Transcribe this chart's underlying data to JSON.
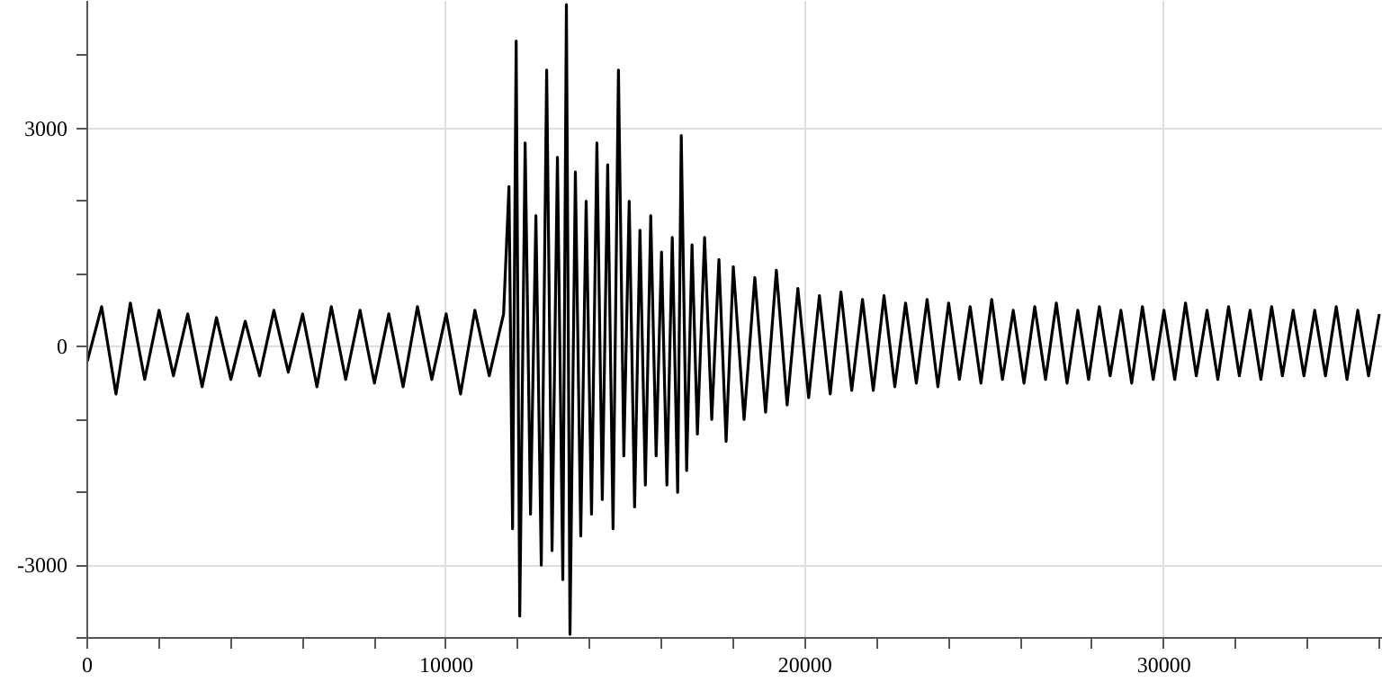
{
  "chart_data": {
    "type": "line",
    "x": [
      0,
      400,
      800,
      1200,
      1600,
      2000,
      2400,
      2800,
      3200,
      3600,
      4000,
      4400,
      4800,
      5200,
      5600,
      6000,
      6400,
      6800,
      7200,
      7600,
      8000,
      8400,
      8800,
      9200,
      9600,
      10000,
      10400,
      10800,
      11200,
      11600,
      11750,
      11850,
      11950,
      12050,
      12200,
      12350,
      12500,
      12650,
      12800,
      12950,
      13100,
      13250,
      13350,
      13450,
      13600,
      13750,
      13900,
      14050,
      14200,
      14350,
      14500,
      14650,
      14800,
      14950,
      15100,
      15250,
      15400,
      15550,
      15700,
      15850,
      16000,
      16150,
      16300,
      16450,
      16550,
      16700,
      16850,
      17000,
      17200,
      17400,
      17600,
      17800,
      18000,
      18300,
      18600,
      18900,
      19200,
      19500,
      19800,
      20100,
      20400,
      20700,
      21000,
      21300,
      21600,
      21900,
      22200,
      22500,
      22800,
      23100,
      23400,
      23700,
      24000,
      24300,
      24600,
      24900,
      25200,
      25500,
      25800,
      26100,
      26400,
      26700,
      27000,
      27300,
      27600,
      27900,
      28200,
      28500,
      28800,
      29100,
      29400,
      29700,
      30000,
      30300,
      30600,
      30900,
      31200,
      31500,
      31800,
      32100,
      32400,
      32700,
      33000,
      33300,
      33600,
      33900,
      34200,
      34500,
      34800,
      35100,
      35400,
      35700,
      36000
    ],
    "values": [
      -200,
      550,
      -650,
      600,
      -450,
      500,
      -400,
      450,
      -550,
      400,
      -450,
      350,
      -400,
      500,
      -350,
      450,
      -550,
      550,
      -450,
      500,
      -500,
      450,
      -550,
      550,
      -450,
      450,
      -650,
      500,
      -400,
      450,
      2200,
      -2500,
      4200,
      -3700,
      2800,
      -2300,
      1800,
      -3000,
      3800,
      -2800,
      2600,
      -3200,
      4700,
      -3950,
      2400,
      -2600,
      2000,
      -2300,
      2800,
      -2100,
      2500,
      -2500,
      3800,
      -1500,
      2000,
      -2200,
      1600,
      -1900,
      1800,
      -1500,
      1300,
      -1900,
      1500,
      -2000,
      2900,
      -1700,
      1400,
      -1200,
      1500,
      -1000,
      1200,
      -1300,
      1100,
      -1000,
      950,
      -900,
      1050,
      -800,
      800,
      -700,
      700,
      -650,
      750,
      -600,
      650,
      -600,
      700,
      -550,
      600,
      -500,
      650,
      -550,
      600,
      -450,
      550,
      -500,
      650,
      -450,
      500,
      -500,
      550,
      -450,
      600,
      -500,
      500,
      -450,
      550,
      -400,
      500,
      -500,
      550,
      -450,
      500,
      -450,
      600,
      -400,
      500,
      -450,
      550,
      -400,
      500,
      -450,
      550,
      -400,
      500,
      -400,
      500,
      -400,
      550,
      -450,
      500,
      -400,
      450
    ],
    "color": "#000000",
    "xlim": [
      0,
      36100
    ],
    "ylim": [
      -4000,
      4750
    ],
    "xticks": [
      0,
      {
        "value": 2000,
        "label": null
      },
      {
        "value": 4000,
        "label": null
      },
      {
        "value": 6000,
        "label": null
      },
      {
        "value": 8000,
        "label": null
      },
      10000,
      {
        "value": 12000,
        "label": null
      },
      {
        "value": 14000,
        "label": null
      },
      {
        "value": 16000,
        "label": null
      },
      {
        "value": 18000,
        "label": null
      },
      20000,
      {
        "value": 22000,
        "label": null
      },
      {
        "value": 24000,
        "label": null
      },
      {
        "value": 26000,
        "label": null
      },
      {
        "value": 28000,
        "label": null
      },
      30000,
      {
        "value": 32000,
        "label": null
      },
      {
        "value": 34000,
        "label": null
      },
      {
        "value": 36000,
        "label": null
      }
    ],
    "yticks": [
      {
        "value": -4000,
        "label": null
      },
      -3000,
      {
        "value": -2000,
        "label": null
      },
      {
        "value": -1000,
        "label": null
      },
      0,
      {
        "value": 1000,
        "label": null
      },
      {
        "value": 2000,
        "label": null
      },
      3000,
      {
        "value": 4000,
        "label": null
      }
    ],
    "grid": true,
    "line_style": "solid",
    "marker": "none"
  }
}
